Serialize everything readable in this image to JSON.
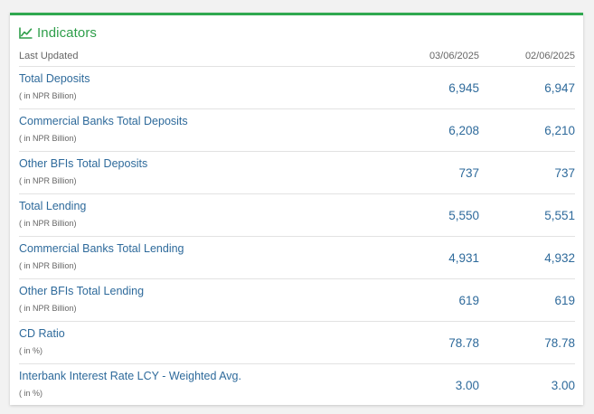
{
  "widget": {
    "title": "Indicators",
    "title_icon": "line-chart-icon",
    "accent_color": "#2fa84f",
    "value_color": "#2e6a9b"
  },
  "columns": {
    "label": "Last Updated",
    "date1": "03/06/2025",
    "date2": "02/06/2025"
  },
  "rows": [
    {
      "label": "Total Deposits",
      "unit": "( in NPR Billion)",
      "v1": "6,945",
      "v2": "6,947"
    },
    {
      "label": "Commercial Banks Total Deposits",
      "unit": "( in NPR Billion)",
      "v1": "6,208",
      "v2": "6,210"
    },
    {
      "label": "Other BFIs Total Deposits",
      "unit": "( in NPR Billion)",
      "v1": "737",
      "v2": "737"
    },
    {
      "label": "Total Lending",
      "unit": "( in NPR Billion)",
      "v1": "5,550",
      "v2": "5,551"
    },
    {
      "label": "Commercial Banks Total Lending",
      "unit": "( in NPR Billion)",
      "v1": "4,931",
      "v2": "4,932"
    },
    {
      "label": "Other BFIs Total Lending",
      "unit": "( in NPR Billion)",
      "v1": "619",
      "v2": "619"
    },
    {
      "label": "CD Ratio",
      "unit": "( in %)",
      "v1": "78.78",
      "v2": "78.78"
    },
    {
      "label": "Interbank Interest Rate LCY - Weighted Avg.",
      "unit": "( in %)",
      "v1": "3.00",
      "v2": "3.00"
    }
  ]
}
